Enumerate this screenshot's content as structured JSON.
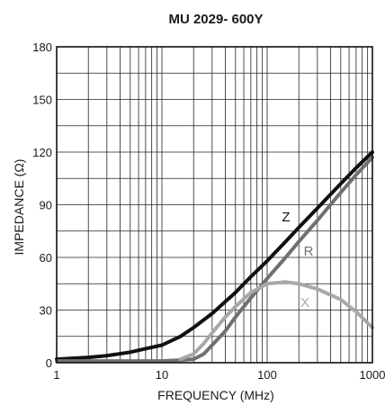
{
  "chart_data": {
    "type": "line",
    "title": "MU 2029-  600Y",
    "xlabel": "FREQUENCY (MHz)",
    "ylabel": "IMPEDANCE (Ω)",
    "x_scale": "log",
    "xlim": [
      1,
      1000
    ],
    "ylim": [
      0,
      180
    ],
    "x_ticks": [
      1,
      10,
      100,
      1000
    ],
    "x_tick_labels": [
      "1",
      "10",
      "100",
      "1000"
    ],
    "y_ticks": [
      0,
      30,
      60,
      90,
      120,
      150,
      180
    ],
    "y_tick_labels": [
      "0",
      "30",
      "60",
      "90",
      "120",
      "150",
      "180"
    ],
    "grid": true,
    "series": [
      {
        "name": "Z",
        "color": "#111111",
        "x": [
          1,
          2,
          3,
          5,
          7,
          10,
          15,
          20,
          30,
          50,
          70,
          100,
          150,
          200,
          300,
          500,
          700,
          1000
        ],
        "y": [
          2,
          3,
          4,
          6,
          8,
          10,
          15,
          20,
          28,
          40,
          49,
          58,
          69,
          77,
          88,
          102,
          111,
          120
        ]
      },
      {
        "name": "R",
        "color": "#707070",
        "x": [
          1,
          5,
          10,
          15,
          20,
          25,
          30,
          40,
          50,
          70,
          100,
          150,
          200,
          300,
          500,
          700,
          1000
        ],
        "y": [
          1,
          1,
          1,
          1.5,
          2,
          5,
          10,
          18,
          26,
          37,
          48,
          60,
          69,
          81,
          97,
          107,
          117
        ]
      },
      {
        "name": "X",
        "color": "#a8a8a8",
        "x": [
          15,
          20,
          25,
          30,
          40,
          50,
          70,
          100,
          150,
          200,
          300,
          500,
          700,
          1000
        ],
        "y": [
          2,
          5,
          11,
          17,
          26,
          32,
          40,
          45,
          46,
          45,
          42,
          36,
          29,
          20
        ]
      }
    ]
  }
}
